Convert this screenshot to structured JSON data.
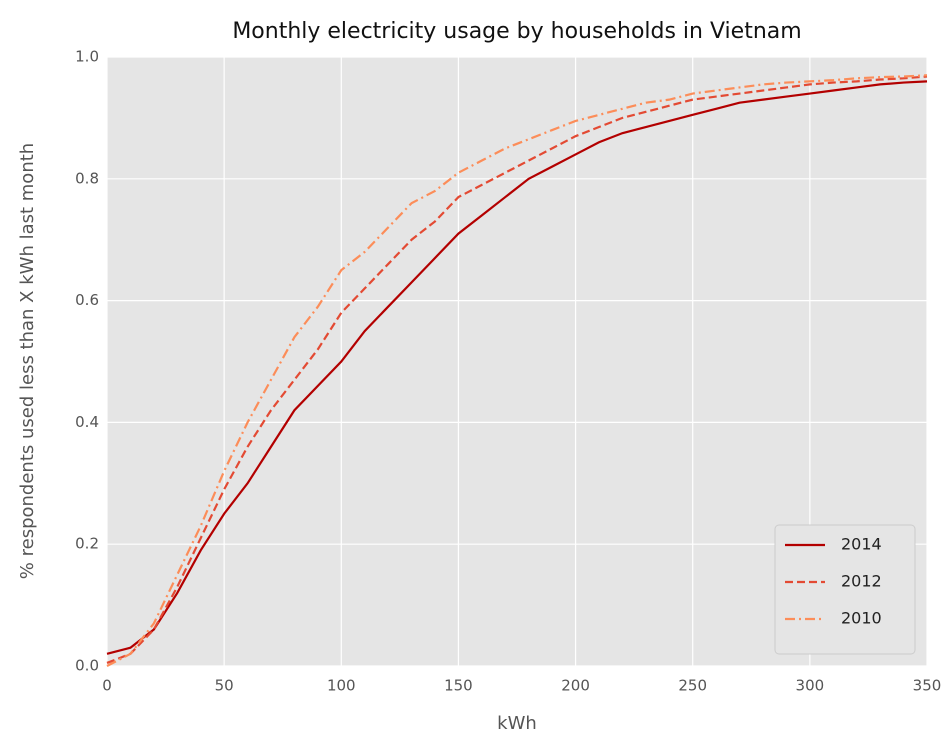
{
  "chart_data": {
    "type": "line",
    "title": "Monthly electricity usage by households in Vietnam",
    "x_label": "kWh",
    "y_label": "% respondents used less than X kWh last month",
    "x": [
      0,
      10,
      20,
      30,
      40,
      50,
      60,
      70,
      80,
      90,
      100,
      110,
      120,
      130,
      140,
      150,
      160,
      170,
      180,
      190,
      200,
      210,
      220,
      230,
      240,
      250,
      260,
      270,
      280,
      290,
      300,
      310,
      320,
      330,
      340,
      350
    ],
    "series": [
      {
        "name": "2014",
        "color": "#b30000",
        "dash": "solid",
        "values": [
          0.02,
          0.03,
          0.06,
          0.12,
          0.19,
          0.25,
          0.3,
          0.36,
          0.42,
          0.46,
          0.5,
          0.55,
          0.59,
          0.63,
          0.67,
          0.71,
          0.74,
          0.77,
          0.8,
          0.82,
          0.84,
          0.86,
          0.875,
          0.885,
          0.895,
          0.905,
          0.915,
          0.925,
          0.93,
          0.935,
          0.94,
          0.945,
          0.95,
          0.955,
          0.958,
          0.96
        ]
      },
      {
        "name": "2012",
        "color": "#e34a33",
        "dash": "dashed",
        "values": [
          0.005,
          0.02,
          0.06,
          0.13,
          0.21,
          0.29,
          0.36,
          0.42,
          0.47,
          0.52,
          0.58,
          0.62,
          0.66,
          0.7,
          0.73,
          0.77,
          0.79,
          0.81,
          0.83,
          0.85,
          0.87,
          0.885,
          0.9,
          0.91,
          0.92,
          0.93,
          0.935,
          0.94,
          0.945,
          0.95,
          0.955,
          0.958,
          0.96,
          0.963,
          0.965,
          0.968
        ]
      },
      {
        "name": "2010",
        "color": "#fc8d59",
        "dash": "dashdot",
        "values": [
          0.0,
          0.02,
          0.07,
          0.15,
          0.23,
          0.32,
          0.4,
          0.47,
          0.54,
          0.59,
          0.65,
          0.68,
          0.72,
          0.76,
          0.78,
          0.81,
          0.83,
          0.85,
          0.865,
          0.88,
          0.895,
          0.905,
          0.915,
          0.925,
          0.93,
          0.94,
          0.945,
          0.95,
          0.955,
          0.958,
          0.96,
          0.962,
          0.965,
          0.967,
          0.968,
          0.97
        ]
      }
    ],
    "xlim": [
      0,
      350
    ],
    "xticks": [
      0,
      50,
      100,
      150,
      200,
      250,
      300,
      350
    ],
    "ylim": [
      0,
      1
    ],
    "yticks": [
      {
        "value": 0,
        "label": "0.0"
      },
      0.2,
      0.4,
      0.6,
      0.8,
      {
        "value": 1,
        "label": "1.0"
      }
    ],
    "grid": true,
    "legend": "lower right"
  }
}
